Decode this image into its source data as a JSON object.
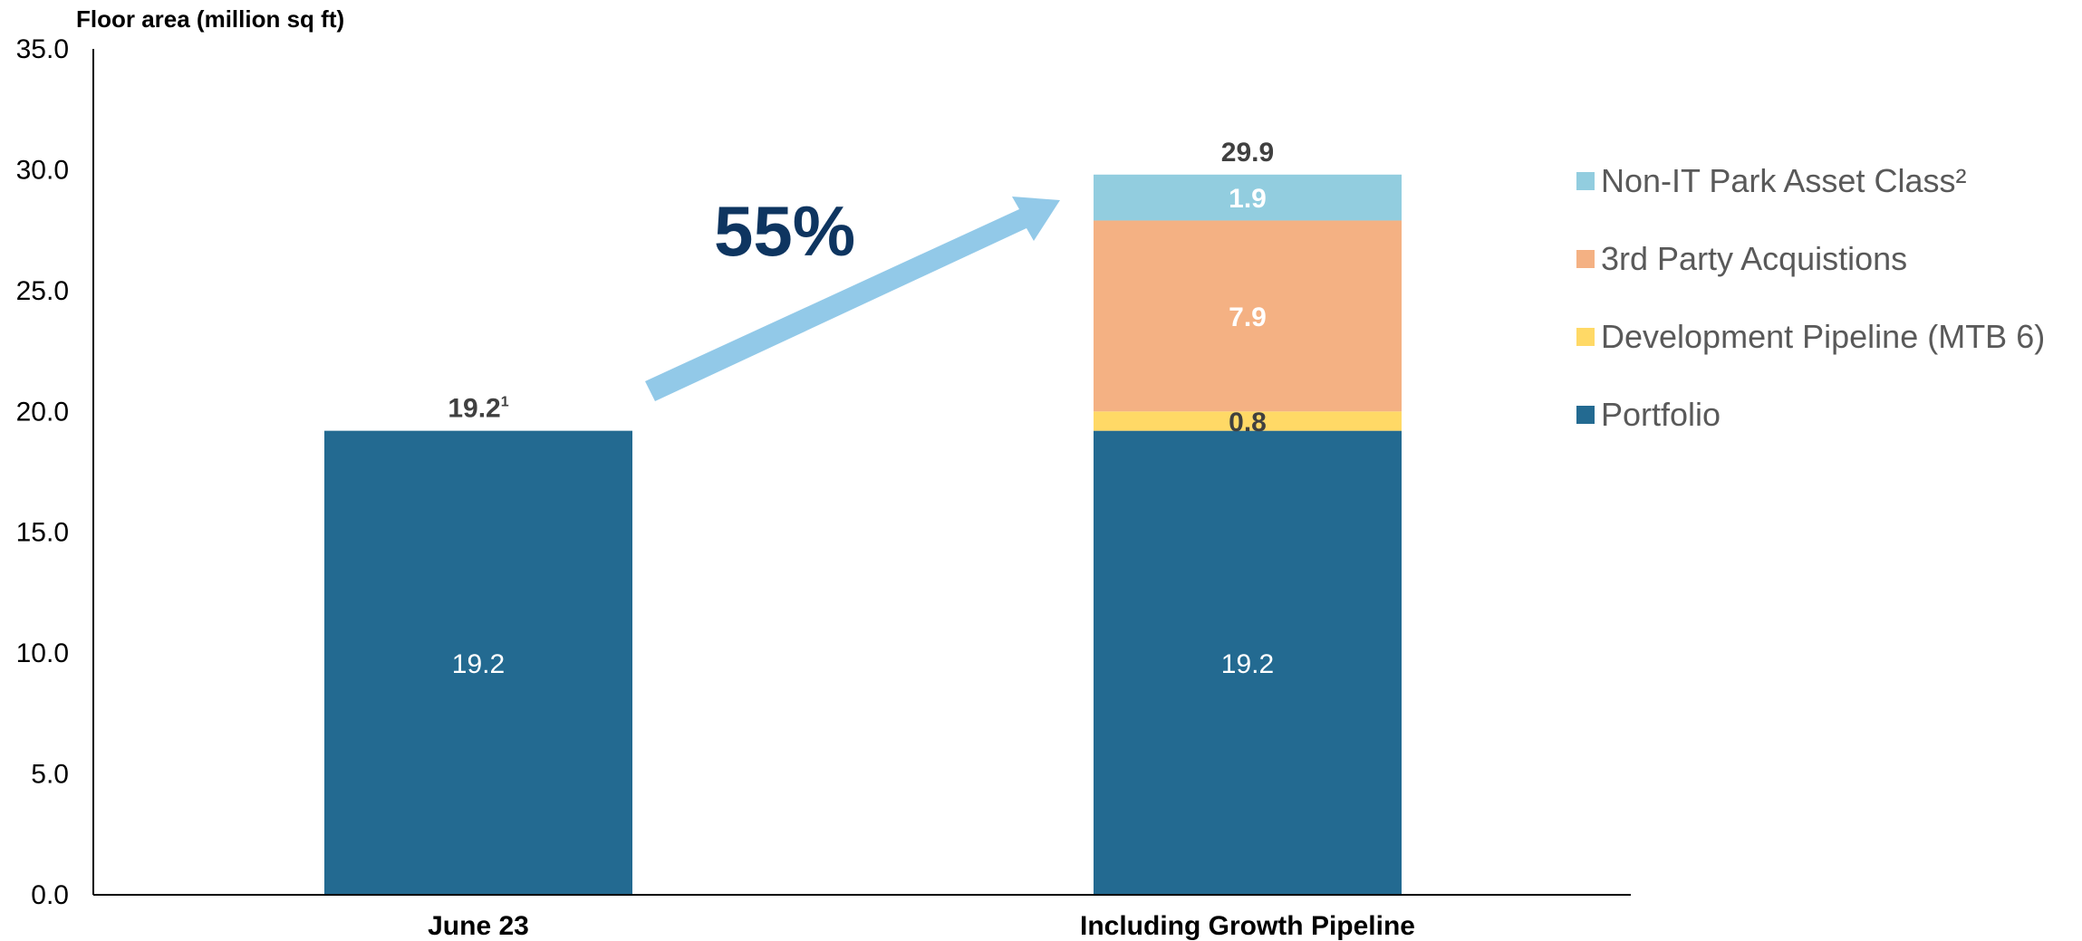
{
  "chart_data": {
    "type": "bar",
    "stacked": true,
    "ylabel": "Floor area (million sq ft)",
    "xlabel": "",
    "ylim": [
      0,
      35
    ],
    "yticks": [
      "0.0",
      "5.0",
      "10.0",
      "15.0",
      "20.0",
      "25.0",
      "30.0",
      "35.0"
    ],
    "grid": false,
    "legend_position": "right",
    "categories": [
      "June 23",
      "Including Growth Pipeline"
    ],
    "series": [
      {
        "name": "Portfolio",
        "color": "#236a91",
        "label_color": "#ffffff",
        "label_bold": false,
        "values": [
          19.2,
          19.2
        ],
        "labels": [
          "19.2",
          "19.2"
        ]
      },
      {
        "name": "Development Pipeline (MTB 6)",
        "color": "#ffd966",
        "label_color": "#404040",
        "label_bold": true,
        "values": [
          0,
          0.8
        ],
        "labels": [
          "",
          "0.8"
        ]
      },
      {
        "name": "3rd Party Acquistions",
        "color": "#f4b183",
        "label_color": "#ffffff",
        "label_bold": true,
        "values": [
          0,
          7.9
        ],
        "labels": [
          "",
          "7.9"
        ]
      },
      {
        "name": "Non-IT Park Asset Class²",
        "color": "#92cddf",
        "label_color": "#ffffff",
        "label_bold": true,
        "values": [
          0,
          1.9
        ],
        "labels": [
          "",
          "1.9"
        ]
      }
    ],
    "totals": [
      "19.2",
      "29.9"
    ],
    "total_superscripts": [
      "1",
      ""
    ],
    "annotation": {
      "text": "55%",
      "arrow_color": "#92c9e8"
    }
  }
}
